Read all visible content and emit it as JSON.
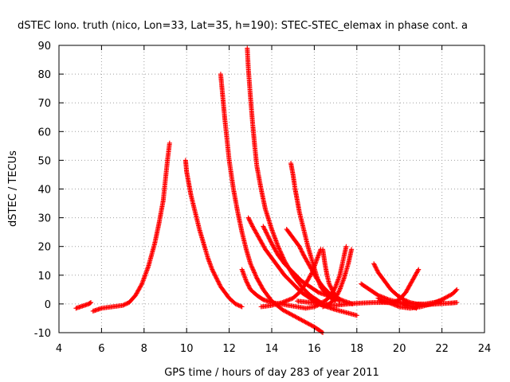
{
  "chart_data": {
    "type": "scatter",
    "title": "dSTEC Iono. truth (nico, Lon=33, Lat=35, h=190): STEC-STEC_elemax in phase cont. a",
    "xlabel": "GPS time / hours of day 283 of year 2011",
    "ylabel": "dSTEC  / TECUs",
    "xlim": [
      4,
      24
    ],
    "ylim": [
      -10,
      90
    ],
    "xticks": [
      "4",
      "6",
      "8",
      "10",
      "12",
      "14",
      "16",
      "18",
      "20",
      "22",
      "24"
    ],
    "yticks": [
      "-10",
      "0",
      "10",
      "20",
      "30",
      "40",
      "50",
      "60",
      "70",
      "80",
      "90"
    ],
    "grid": true,
    "marker": "plus",
    "color": "#ff0000",
    "series": [
      {
        "x": [
          4.8,
          5.0,
          5.2,
          5.4,
          5.5
        ],
        "y": [
          -1.5,
          -1.0,
          -0.5,
          0.0,
          0.5
        ]
      },
      {
        "x": [
          5.6,
          6.0,
          6.5,
          7.0,
          7.3,
          7.6,
          7.9,
          8.2,
          8.5,
          8.7,
          8.9,
          9.0,
          9.1,
          9.2
        ],
        "y": [
          -2.5,
          -1.5,
          -1.0,
          -0.5,
          0.5,
          3,
          7,
          13,
          21,
          28,
          36,
          43,
          50,
          56
        ]
      },
      {
        "x": [
          9.95,
          10.0,
          10.1,
          10.2,
          10.4,
          10.6,
          10.8,
          11.0,
          11.2,
          11.4,
          11.6,
          11.8,
          12.0,
          12.3,
          12.6
        ],
        "y": [
          50,
          46,
          42,
          38,
          32,
          26,
          21,
          16,
          12,
          9,
          6,
          4,
          2,
          0,
          -1
        ]
      },
      {
        "x": [
          11.6,
          11.7,
          11.8,
          11.9,
          12.0,
          12.2,
          12.4,
          12.6,
          12.8,
          13.0,
          13.3,
          13.6,
          14.0,
          14.5,
          15.0,
          15.5,
          16.0,
          16.4
        ],
        "y": [
          80,
          72,
          64,
          57,
          50,
          40,
          32,
          25,
          19,
          14,
          9,
          5,
          1,
          -2,
          -4,
          -6,
          -8,
          -10
        ]
      },
      {
        "x": [
          12.85,
          12.9,
          13.0,
          13.1,
          13.2,
          13.3,
          13.5,
          13.7,
          14.0,
          14.3,
          14.6,
          15.0,
          15.4,
          15.8,
          16.2,
          16.6,
          17.0,
          17.5,
          18.0
        ],
        "y": [
          89,
          82,
          72,
          63,
          55,
          48,
          40,
          33,
          26,
          20,
          15,
          10,
          6,
          3,
          1,
          -1,
          -2,
          -3,
          -4
        ]
      },
      {
        "x": [
          12.6,
          12.8,
          13.0,
          13.3,
          13.6,
          14.0,
          14.4,
          14.8,
          15.2,
          15.6,
          16.0,
          16.3
        ],
        "y": [
          12,
          8,
          5,
          3,
          1.5,
          0.5,
          0,
          -0.5,
          -1,
          -1.5,
          -1,
          0
        ]
      },
      {
        "x": [
          12.9,
          13.1,
          13.4,
          13.7,
          14.0,
          14.3,
          14.6,
          15.0,
          15.4,
          15.8,
          16.2,
          16.6
        ],
        "y": [
          30,
          27,
          23,
          19,
          16,
          13,
          10,
          7,
          4,
          2,
          0,
          -1
        ]
      },
      {
        "x": [
          13.6,
          13.8,
          14.0,
          14.3,
          14.6,
          15.0,
          15.4,
          15.8,
          16.2,
          16.6,
          17.0
        ],
        "y": [
          27,
          24,
          21,
          17,
          14,
          11,
          8,
          6,
          4,
          3,
          2
        ]
      },
      {
        "x": [
          14.9,
          15.0,
          15.1,
          15.2,
          15.3,
          15.5,
          15.7,
          15.9,
          16.1,
          16.3,
          16.6,
          17.0
        ],
        "y": [
          49,
          45,
          40,
          36,
          32,
          26,
          20,
          15,
          10,
          6,
          3,
          1
        ]
      },
      {
        "x": [
          14.7,
          14.9,
          15.1,
          15.3,
          15.5,
          15.8,
          16.1,
          16.4,
          16.8,
          17.2
        ],
        "y": [
          26,
          24,
          22,
          20,
          17,
          13,
          9,
          6,
          3,
          1
        ]
      },
      {
        "x": [
          13.5,
          14.0,
          14.5,
          15.0,
          15.3,
          15.6,
          15.9,
          16.1,
          16.3
        ],
        "y": [
          -1,
          -0.5,
          0.5,
          2,
          4,
          7,
          11,
          15,
          19
        ]
      },
      {
        "x": [
          16.4,
          16.5,
          16.6,
          16.7,
          16.9,
          17.1,
          17.4,
          17.8
        ],
        "y": [
          19,
          14,
          10,
          7,
          4,
          2,
          1,
          0
        ]
      },
      {
        "x": [
          16.2,
          16.5,
          16.8,
          17.0,
          17.2,
          17.35,
          17.5
        ],
        "y": [
          0,
          1,
          3,
          6,
          10,
          15,
          20
        ]
      },
      {
        "x": [
          16.4,
          16.7,
          17.0,
          17.2,
          17.4,
          17.6,
          17.75
        ],
        "y": [
          -1,
          0,
          2,
          5,
          9,
          14,
          19
        ]
      },
      {
        "x": [
          15.2,
          15.8,
          16.4,
          17.0,
          17.6,
          18.2,
          18.8,
          19.4,
          20.0,
          20.6,
          21.2,
          21.8,
          22.4,
          22.7
        ],
        "y": [
          1,
          0.5,
          0,
          -0.5,
          0,
          0.3,
          0.5,
          0.5,
          0.3,
          0,
          -0.3,
          0,
          0.3,
          0.5
        ]
      },
      {
        "x": [
          18.8,
          19.0,
          19.3,
          19.6,
          19.9,
          20.2,
          20.5,
          20.8,
          21.2,
          21.6,
          22.0
        ],
        "y": [
          14,
          11,
          8,
          5,
          3,
          1.5,
          0.5,
          0,
          0,
          0.5,
          1
        ]
      },
      {
        "x": [
          19.1,
          19.4,
          19.7,
          20.0,
          20.3,
          20.6,
          20.9
        ],
        "y": [
          1,
          0.5,
          0.5,
          1.5,
          4,
          8,
          12
        ]
      },
      {
        "x": [
          18.2,
          18.6,
          19.0,
          19.5,
          20.0,
          20.4,
          20.8
        ],
        "y": [
          7,
          5,
          3,
          1.5,
          0.5,
          -0.5,
          -1.5
        ]
      },
      {
        "x": [
          19.0,
          19.5,
          20.0,
          20.5,
          21.0,
          21.5,
          22.0,
          22.5,
          22.7
        ],
        "y": [
          2,
          0.5,
          -1,
          -1.5,
          -1,
          0,
          1.5,
          3.5,
          5
        ]
      }
    ]
  }
}
